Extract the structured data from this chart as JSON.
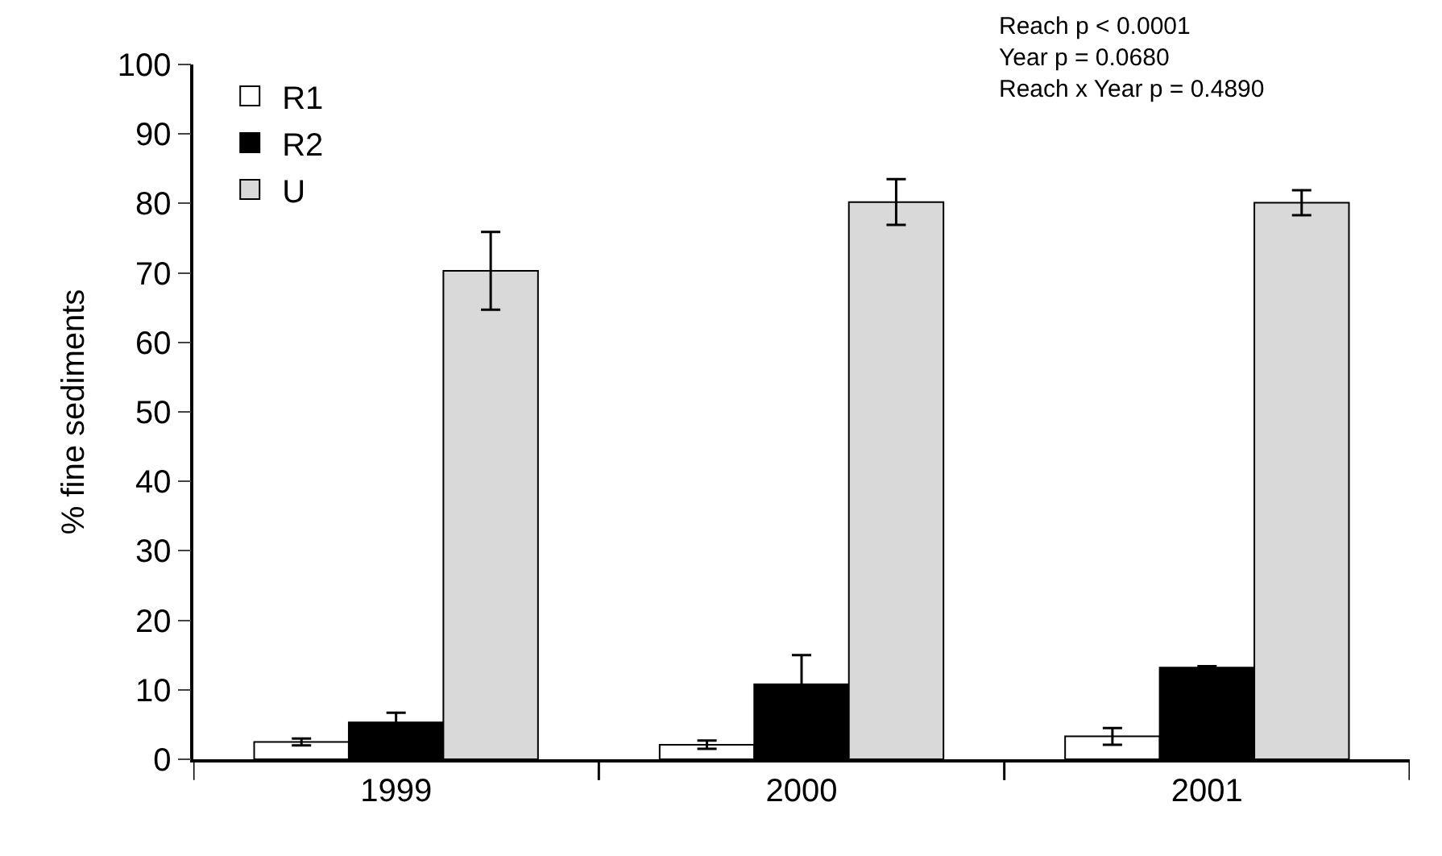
{
  "chart_data": {
    "type": "bar",
    "ylabel": "% fine sediments",
    "categories": [
      "1999",
      "2000",
      "2001"
    ],
    "series": [
      {
        "name": "R1",
        "color": "#ffffff",
        "values": [
          2.5,
          2.1,
          3.3
        ],
        "errors": [
          0.5,
          0.6,
          1.2
        ]
      },
      {
        "name": "R2",
        "color": "#000000",
        "values": [
          5.3,
          10.8,
          13.2
        ],
        "errors": [
          1.4,
          4.2,
          0.2
        ]
      },
      {
        "name": "U",
        "color": "#d9d9d9",
        "values": [
          70.3,
          80.2,
          80.1
        ],
        "errors": [
          5.6,
          3.3,
          1.8
        ]
      }
    ],
    "ylim": [
      0,
      100
    ],
    "yticks": [
      0,
      10,
      20,
      30,
      40,
      50,
      60,
      70,
      80,
      90,
      100
    ],
    "legend": "top left",
    "annotations": [
      "Reach p < 0.0001",
      "Year p = 0.0680",
      "Reach x Year p = 0.4890"
    ]
  }
}
